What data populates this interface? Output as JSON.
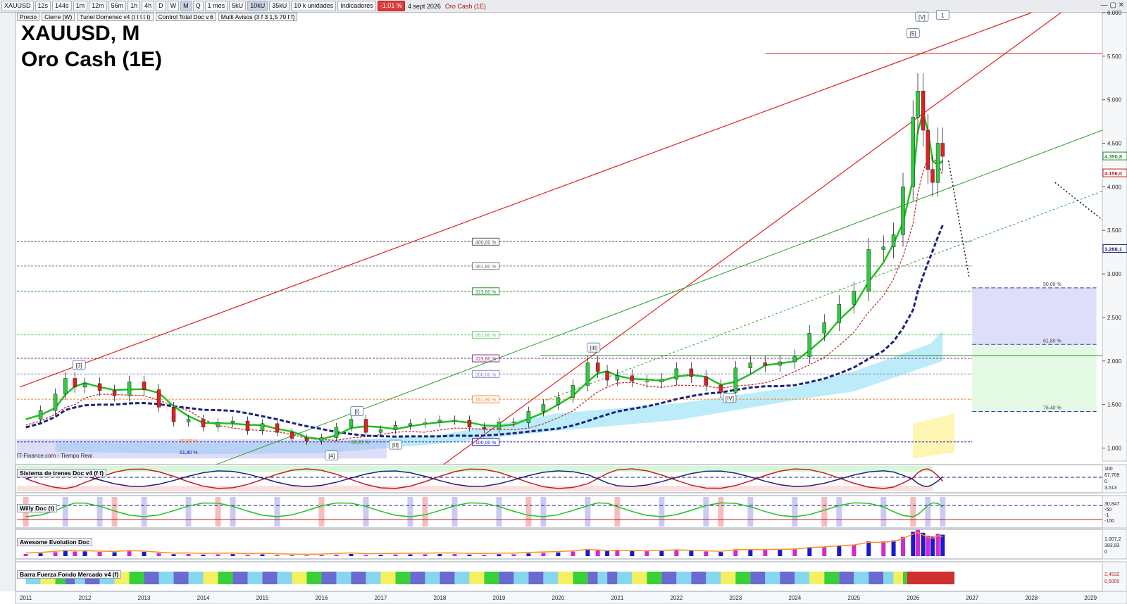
{
  "toolbar": {
    "symbol": "XAUUSD",
    "intervals": [
      "12s",
      "144s",
      "1m",
      "12m",
      "56m",
      "1h",
      "4h",
      "D",
      "W",
      "M",
      "Q"
    ],
    "selected_interval": "M",
    "period": "1 mes",
    "bricks": [
      "5kU",
      "10kU",
      "35kU"
    ],
    "selected_brick": "10kU",
    "units": "10 k unidades",
    "indicators_label": "Indicadores",
    "change": "-1,01 %",
    "date": "4 sept 2026",
    "instrument": "Oro Cash (1E)"
  },
  "indicator_bar": [
    "Precio",
    "Cierre (W)",
    "Tunel Domenec v4 (t t t t t)",
    "Control Total Doc v.6",
    "Multi Avisos (3 f 3 1,5 70 f f)"
  ],
  "title": {
    "line1": "XAUUSD, M",
    "line2": "Oro Cash (1E)"
  },
  "source_label": "IT-Finance.com - Tiempo Real",
  "panels": [
    "Sistema de trenes Doc v4 (f f)",
    "Willy Doc (t)",
    "Awesome Evolution Doc",
    "Barra Fuerza Fondo Mercado v4 (f)"
  ],
  "right_axis_labels": {
    "trenes": [
      "100",
      "67,709",
      "0",
      "3,513"
    ],
    "willy": [
      "30,847",
      "-50",
      "-1",
      "-100"
    ],
    "awesome": [
      "1.007,2",
      "393,93",
      "0"
    ],
    "barra": [
      "2,4532",
      "0,5000"
    ]
  },
  "price_tags": {
    "last": "4.350,8",
    "prev": "4.156,0",
    "avg": "3.288,1"
  },
  "colors": {
    "up": "#2ecc40",
    "down": "#e02020",
    "doji": "#f0e040",
    "fastma": "#22c022",
    "slowma": "#c02020",
    "longma": "#1a237e"
  },
  "chart_data": {
    "type": "candlestick",
    "title": "XAUUSD, M",
    "subtitle": "Oro Cash (1E)",
    "xlabel": "",
    "ylabel": "",
    "x_ticks": [
      "2011",
      "2012",
      "2013",
      "2014",
      "2015",
      "2016",
      "2017",
      "2018",
      "2019",
      "2020",
      "2021",
      "2022",
      "2023",
      "2024",
      "2025",
      "2026",
      "2027",
      "2028",
      "2029"
    ],
    "y_ticks": [
      "1.000",
      "1.500",
      "2.000",
      "2.500",
      "3.000",
      "3.500",
      "4.000",
      "4.500",
      "5.000",
      "5.500",
      "6.000"
    ],
    "ylim": [
      850,
      6000
    ],
    "close_series": [
      [
        2011.0,
        1330
      ],
      [
        2011.25,
        1430
      ],
      [
        2011.5,
        1620
      ],
      [
        2011.67,
        1800
      ],
      [
        2011.83,
        1700
      ],
      [
        2012.0,
        1740
      ],
      [
        2012.25,
        1660
      ],
      [
        2012.5,
        1600
      ],
      [
        2012.75,
        1760
      ],
      [
        2013.0,
        1670
      ],
      [
        2013.25,
        1470
      ],
      [
        2013.5,
        1300
      ],
      [
        2013.75,
        1330
      ],
      [
        2014.0,
        1240
      ],
      [
        2014.25,
        1290
      ],
      [
        2014.5,
        1310
      ],
      [
        2014.75,
        1200
      ],
      [
        2015.0,
        1280
      ],
      [
        2015.25,
        1180
      ],
      [
        2015.5,
        1110
      ],
      [
        2015.75,
        1080
      ],
      [
        2016.0,
        1120
      ],
      [
        2016.25,
        1240
      ],
      [
        2016.5,
        1330
      ],
      [
        2016.75,
        1180
      ],
      [
        2017.0,
        1210
      ],
      [
        2017.25,
        1260
      ],
      [
        2017.5,
        1280
      ],
      [
        2017.75,
        1290
      ],
      [
        2018.0,
        1320
      ],
      [
        2018.25,
        1320
      ],
      [
        2018.5,
        1240
      ],
      [
        2018.75,
        1220
      ],
      [
        2019.0,
        1300
      ],
      [
        2019.25,
        1290
      ],
      [
        2019.5,
        1420
      ],
      [
        2019.75,
        1500
      ],
      [
        2020.0,
        1580
      ],
      [
        2020.25,
        1720
      ],
      [
        2020.5,
        1980
      ],
      [
        2020.67,
        1880
      ],
      [
        2020.83,
        1780
      ],
      [
        2021.0,
        1830
      ],
      [
        2021.25,
        1770
      ],
      [
        2021.5,
        1760
      ],
      [
        2021.75,
        1790
      ],
      [
        2022.0,
        1910
      ],
      [
        2022.25,
        1820
      ],
      [
        2022.5,
        1720
      ],
      [
        2022.75,
        1640
      ],
      [
        2023.0,
        1920
      ],
      [
        2023.25,
        1980
      ],
      [
        2023.5,
        1950
      ],
      [
        2023.75,
        1990
      ],
      [
        2024.0,
        2050
      ],
      [
        2024.25,
        2320
      ],
      [
        2024.5,
        2440
      ],
      [
        2024.75,
        2650
      ],
      [
        2025.0,
        2800
      ],
      [
        2025.25,
        3280
      ],
      [
        2025.5,
        3310
      ],
      [
        2025.67,
        3450
      ],
      [
        2025.83,
        4000
      ],
      [
        2026.0,
        4800
      ],
      [
        2026.08,
        5100
      ],
      [
        2026.17,
        4650
      ],
      [
        2026.25,
        4200
      ],
      [
        2026.33,
        4050
      ],
      [
        2026.42,
        4500
      ],
      [
        2026.5,
        4350
      ]
    ],
    "markers": [
      {
        "label": "[3]",
        "x": 2011.9,
        "y": 1950
      },
      {
        "label": "[4]",
        "x": 2016.17,
        "y": 910
      },
      {
        "label": "[I]",
        "x": 2016.6,
        "y": 1420
      },
      {
        "label": "[II]",
        "x": 2017.25,
        "y": 1035
      },
      {
        "label": "[III]",
        "x": 2020.6,
        "y": 2150
      },
      {
        "label": "[IV]",
        "x": 2022.9,
        "y": 1570
      },
      {
        "label": "[5]",
        "x": 2026.0,
        "y": 5760
      },
      {
        "label": "[V]",
        "x": 2026.15,
        "y": 5950
      },
      {
        "label": "1",
        "x": 2026.5,
        "y": 5970
      }
    ],
    "fib_levels": [
      {
        "label": "400,00 %",
        "y": 3370,
        "color": "#555555"
      },
      {
        "label": "361,80 %",
        "y": 3090,
        "color": "#777777"
      },
      {
        "label": "323,60 %",
        "y": 2800,
        "color": "#2a8a2a"
      },
      {
        "label": "261,80 %",
        "y": 2300,
        "color": "#66cc66"
      },
      {
        "label": "223,60 %",
        "y": 2030,
        "color": "#8a2a8a"
      },
      {
        "label": "200,00 %",
        "y": 1850,
        "color": "#8888cc"
      },
      {
        "label": "161,80 %",
        "y": 1560,
        "color": "#ff7f27"
      },
      {
        "label": "100,00 %",
        "y": 1070,
        "color": "#1a1aaa"
      }
    ],
    "retracement_levels": [
      {
        "label": "50,00 %",
        "y": 2840
      },
      {
        "label": "61,80 %",
        "y": 2190
      },
      {
        "label": "76,40 %",
        "y": 1420
      }
    ],
    "left_fib_labels": [
      "50,00 %",
      "61,80 %",
      "88,20 %"
    ]
  }
}
